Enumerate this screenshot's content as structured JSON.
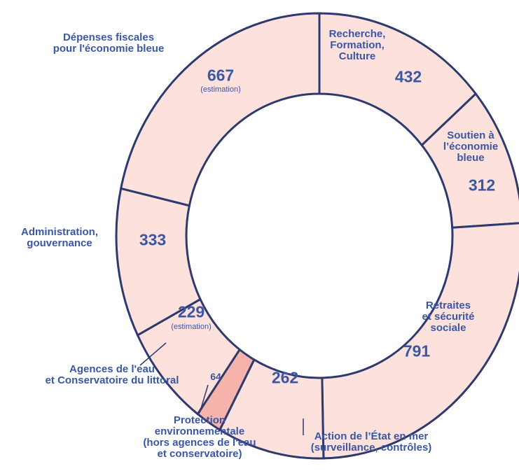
{
  "chart_data": {
    "type": "donut",
    "categories": [
      "Recherche,\nFormation,\nCulture",
      "Soutien à\nl’économie\nbleue",
      "Retraites\net sécurité\nsociale",
      "Action de l’État en mer\n(surveillance, contrôles)",
      "Protection\nenvironnementale\n(hors agences de l'eau\net conservatoire)",
      "Agences de l'eau\net Conservatoire du littoral",
      "Administration,\ngouvernance",
      "Dépenses fiscales\npour l'économie bleue"
    ],
    "values": [
      432,
      312,
      791,
      262,
      64,
      229,
      333,
      667
    ],
    "value_notes": [
      null,
      null,
      null,
      null,
      null,
      "(estimation)",
      null,
      "(estimation)"
    ],
    "colors": [
      "#fde1dd",
      "#fde1dd",
      "#fde1dd",
      "#fde1dd",
      "#f6b3ab",
      "#fde1dd",
      "#fde1dd",
      "#fde1dd"
    ],
    "edge_color": "#2e3a6e",
    "label_color": "#3b57a3"
  }
}
